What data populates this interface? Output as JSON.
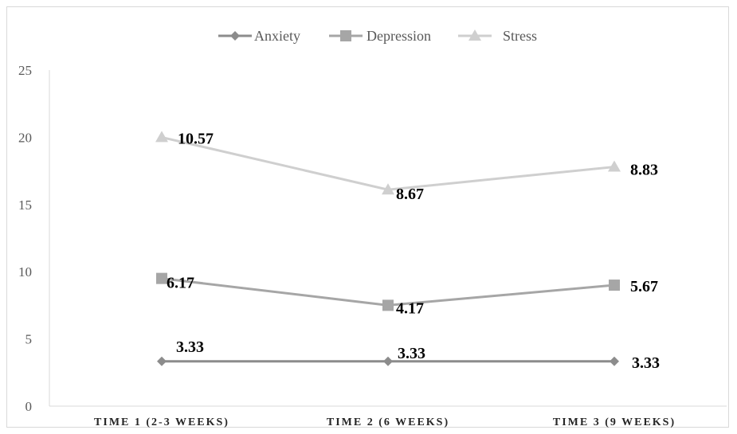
{
  "chart_data": {
    "type": "line",
    "title": "",
    "xlabel": "",
    "ylabel": "",
    "categories": [
      "TIME 1 (2-3 WEEKS)",
      "TIME 2 (6 WEEKS)",
      "TIME 3 (9 WEEKS)"
    ],
    "y_ticks": [
      "0",
      "5",
      "10",
      "15",
      "20",
      "25"
    ],
    "ylim": [
      0,
      25
    ],
    "grid": false,
    "legend_position": "top",
    "series": [
      {
        "name": "Anxiety",
        "marker": "diamond",
        "color": "#8c8c8c",
        "values": [
          3.33,
          3.33,
          3.33
        ],
        "labels": [
          "3.33",
          "3.33",
          "3.33"
        ]
      },
      {
        "name": "Depression",
        "marker": "square",
        "color": "#a6a6a6",
        "plotted_values": [
          9.5,
          7.5,
          9.0
        ],
        "labels": [
          "6.17",
          "4.17",
          "5.67"
        ]
      },
      {
        "name": "Stress",
        "marker": "triangle",
        "color": "#cfcfcf",
        "plotted_values": [
          20.0,
          16.1,
          17.8
        ],
        "labels": [
          "10.57",
          "8.67",
          "8.83"
        ]
      }
    ]
  }
}
